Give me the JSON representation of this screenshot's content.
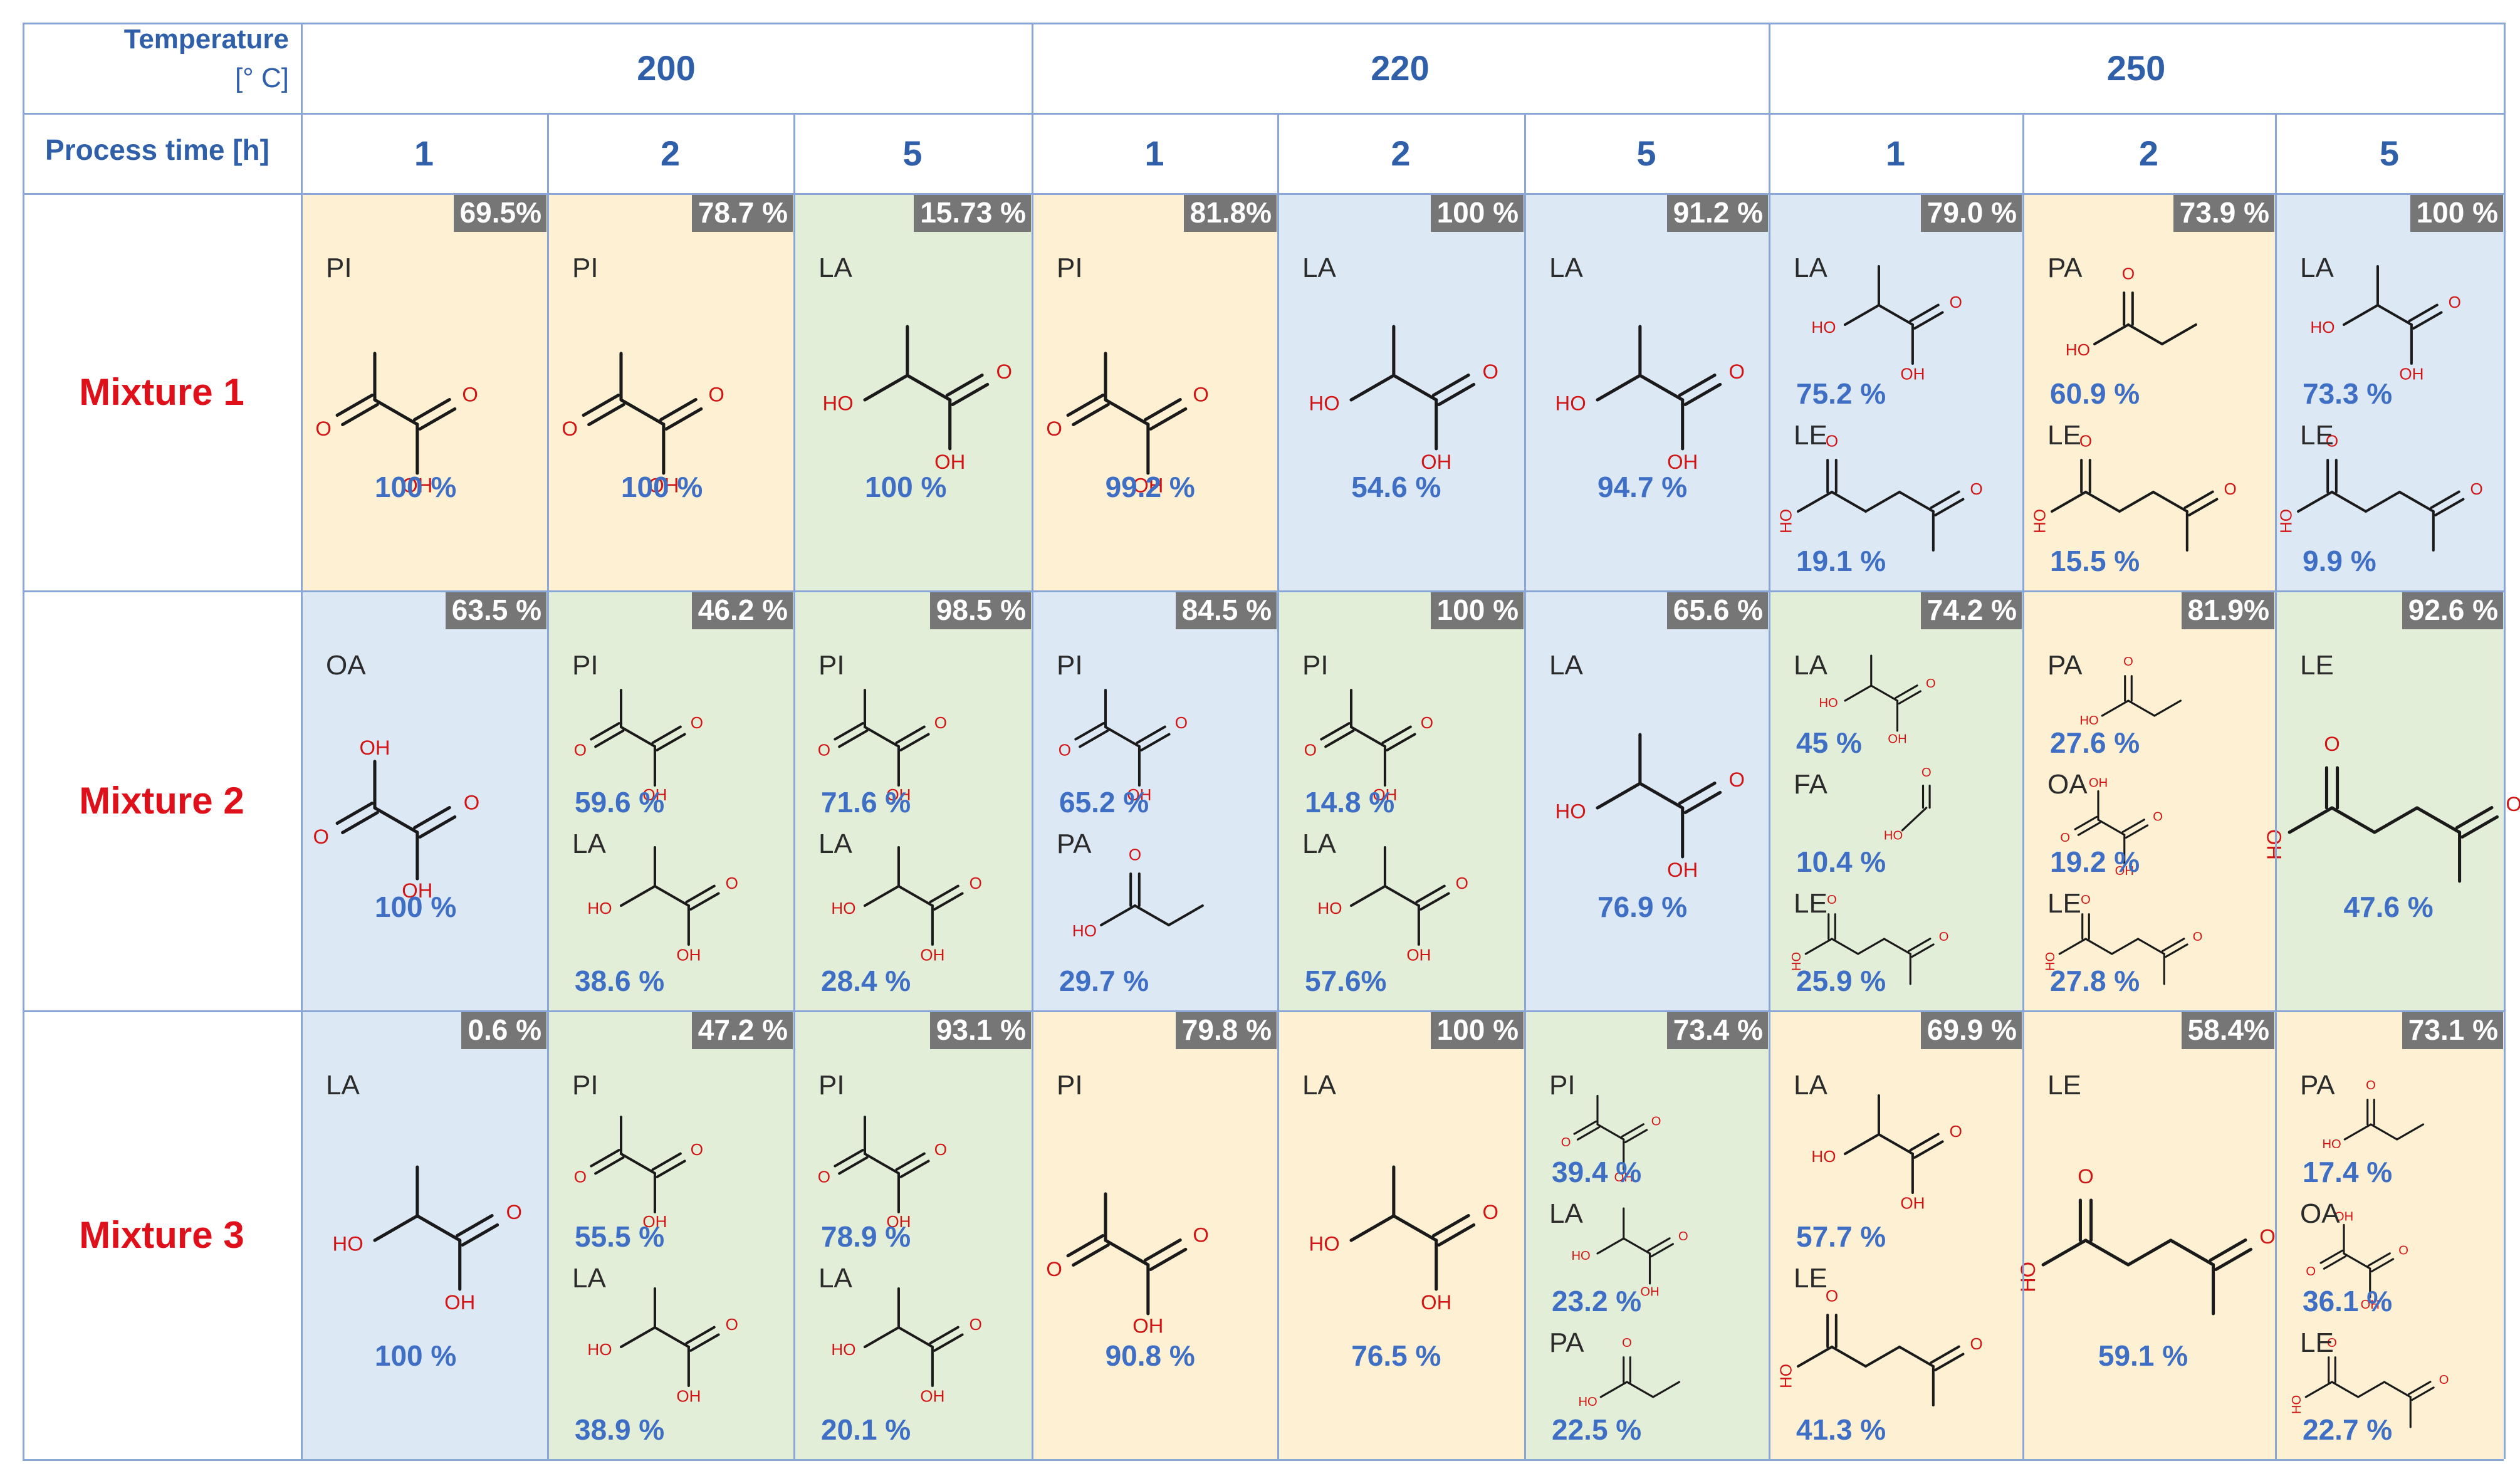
{
  "header": {
    "temperature_label": "Temperature",
    "temperature_unit": "[° C]",
    "process_time_label": "Process time [h]",
    "temperatures": [
      "200",
      "220",
      "250"
    ],
    "times": [
      "1",
      "2",
      "5",
      "1",
      "2",
      "5",
      "1",
      "2",
      "5"
    ]
  },
  "colors": {
    "yellow": "#fdf0d3",
    "green": "#e3eed9",
    "blue": "#dde8f5",
    "grid": "#8aa6d6",
    "conversion_badge": "#767676",
    "header_text": "#2f5fa8",
    "mixture_text": "#e0101a",
    "percent_text": "#3e6fc4",
    "oxygen": "#d21414",
    "bond": "#1a1a1a"
  },
  "mixtures": [
    {
      "label": "Mixture 1",
      "cells": [
        {
          "bg": "yellow",
          "conversion": "69.5%",
          "products": [
            {
              "abbr": "PI",
              "mol": "pyruvic",
              "pct": "100 %"
            }
          ]
        },
        {
          "bg": "yellow",
          "conversion": "78.7 %",
          "products": [
            {
              "abbr": "PI",
              "mol": "pyruvic",
              "pct": "100 %"
            }
          ]
        },
        {
          "bg": "green",
          "conversion": "15.73 %",
          "products": [
            {
              "abbr": "LA",
              "mol": "lactic",
              "pct": "100 %"
            }
          ]
        },
        {
          "bg": "yellow",
          "conversion": "81.8%",
          "products": [
            {
              "abbr": "PI",
              "mol": "pyruvic",
              "pct": "99.2 %"
            }
          ]
        },
        {
          "bg": "blue",
          "conversion": "100 %",
          "products": [
            {
              "abbr": "LA",
              "mol": "lactic",
              "pct": "54.6 %"
            }
          ]
        },
        {
          "bg": "blue",
          "conversion": "91.2 %",
          "products": [
            {
              "abbr": "LA",
              "mol": "lactic",
              "pct": "94.7 %"
            }
          ]
        },
        {
          "bg": "blue",
          "conversion": "79.0 %",
          "products": [
            {
              "abbr": "LA",
              "mol": "lactic",
              "pct": "75.2 %"
            },
            {
              "abbr": "LE",
              "mol": "levulinic",
              "pct": "19.1 %"
            }
          ]
        },
        {
          "bg": "yellow",
          "conversion": "73.9 %",
          "products": [
            {
              "abbr": "PA",
              "mol": "propionic",
              "pct": "60.9 %"
            },
            {
              "abbr": "LE",
              "mol": "levulinic",
              "pct": "15.5 %"
            }
          ]
        },
        {
          "bg": "blue",
          "conversion": "100 %",
          "products": [
            {
              "abbr": "LA",
              "mol": "lactic",
              "pct": "73.3 %"
            },
            {
              "abbr": "LE",
              "mol": "levulinic",
              "pct": "9.9 %"
            }
          ]
        }
      ]
    },
    {
      "label": "Mixture 2",
      "cells": [
        {
          "bg": "blue",
          "conversion": "63.5 %",
          "products": [
            {
              "abbr": "OA",
              "mol": "oxalic",
              "pct": "100 %"
            }
          ]
        },
        {
          "bg": "green",
          "conversion": "46.2 %",
          "products": [
            {
              "abbr": "PI",
              "mol": "pyruvic",
              "pct": "59.6 %"
            },
            {
              "abbr": "LA",
              "mol": "lactic",
              "pct": "38.6 %"
            }
          ]
        },
        {
          "bg": "green",
          "conversion": "98.5 %",
          "products": [
            {
              "abbr": "PI",
              "mol": "pyruvic",
              "pct": "71.6 %"
            },
            {
              "abbr": "LA",
              "mol": "lactic",
              "pct": "28.4 %"
            }
          ]
        },
        {
          "bg": "blue",
          "conversion": "84.5 %",
          "products": [
            {
              "abbr": "PI",
              "mol": "pyruvic",
              "pct": "65.2 %"
            },
            {
              "abbr": "PA",
              "mol": "propionic",
              "pct": "29.7 %"
            }
          ]
        },
        {
          "bg": "green",
          "conversion": "100 %",
          "products": [
            {
              "abbr": "PI",
              "mol": "pyruvic",
              "pct": "14.8 %"
            },
            {
              "abbr": "LA",
              "mol": "lactic",
              "pct": "57.6%"
            }
          ]
        },
        {
          "bg": "blue",
          "conversion": "65.6 %",
          "products": [
            {
              "abbr": "LA",
              "mol": "lactic",
              "pct": "76.9 %"
            }
          ]
        },
        {
          "bg": "green",
          "conversion": "74.2 %",
          "products": [
            {
              "abbr": "LA",
              "mol": "lactic",
              "pct": "45 %"
            },
            {
              "abbr": "FA",
              "mol": "formic",
              "pct": "10.4 %"
            },
            {
              "abbr": "LE",
              "mol": "levulinic",
              "pct": "25.9 %"
            }
          ]
        },
        {
          "bg": "yellow",
          "conversion": "81.9%",
          "products": [
            {
              "abbr": "PA",
              "mol": "propionic",
              "pct": "27.6 %"
            },
            {
              "abbr": "OA",
              "mol": "oxalic",
              "pct": "19.2 %"
            },
            {
              "abbr": "LE",
              "mol": "levulinic",
              "pct": "27.8 %"
            }
          ]
        },
        {
          "bg": "green",
          "conversion": "92.6 %",
          "products": [
            {
              "abbr": "LE",
              "mol": "levulinic",
              "pct": "47.6 %"
            }
          ]
        }
      ]
    },
    {
      "label": "Mixture 3",
      "cells": [
        {
          "bg": "blue",
          "conversion": "0.6 %",
          "products": [
            {
              "abbr": "LA",
              "mol": "lactic",
              "pct": "100 %"
            }
          ]
        },
        {
          "bg": "green",
          "conversion": "47.2 %",
          "products": [
            {
              "abbr": "PI",
              "mol": "pyruvic",
              "pct": "55.5 %"
            },
            {
              "abbr": "LA",
              "mol": "lactic",
              "pct": "38.9 %"
            }
          ]
        },
        {
          "bg": "green",
          "conversion": "93.1 %",
          "products": [
            {
              "abbr": "PI",
              "mol": "pyruvic",
              "pct": "78.9 %"
            },
            {
              "abbr": "LA",
              "mol": "lactic",
              "pct": "20.1 %"
            }
          ]
        },
        {
          "bg": "yellow",
          "conversion": "79.8 %",
          "products": [
            {
              "abbr": "PI",
              "mol": "pyruvic",
              "pct": "90.8 %"
            }
          ]
        },
        {
          "bg": "yellow",
          "conversion": "100 %",
          "products": [
            {
              "abbr": "LA",
              "mol": "lactic",
              "pct": "76.5 %"
            }
          ]
        },
        {
          "bg": "green",
          "conversion": "73.4 %",
          "products": [
            {
              "abbr": "PI",
              "mol": "pyruvic",
              "pct": "39.4 %"
            },
            {
              "abbr": "LA",
              "mol": "lactic",
              "pct": "23.2 %"
            },
            {
              "abbr": "PA",
              "mol": "propionic",
              "pct": "22.5 %"
            }
          ]
        },
        {
          "bg": "yellow",
          "conversion": "69.9 %",
          "products": [
            {
              "abbr": "LA",
              "mol": "lactic",
              "pct": "57.7 %"
            },
            {
              "abbr": "LE",
              "mol": "levulinic",
              "pct": "41.3 %"
            }
          ]
        },
        {
          "bg": "yellow",
          "conversion": "58.4%",
          "products": [
            {
              "abbr": "LE",
              "mol": "levulinic",
              "pct": "59.1 %"
            }
          ]
        },
        {
          "bg": "yellow",
          "conversion": "73.1 %",
          "products": [
            {
              "abbr": "PA",
              "mol": "propionic",
              "pct": "17.4 %"
            },
            {
              "abbr": "OA",
              "mol": "oxalic",
              "pct": "36.1 %"
            },
            {
              "abbr": "LE",
              "mol": "levulinic",
              "pct": "22.7 %"
            }
          ]
        }
      ]
    }
  ]
}
